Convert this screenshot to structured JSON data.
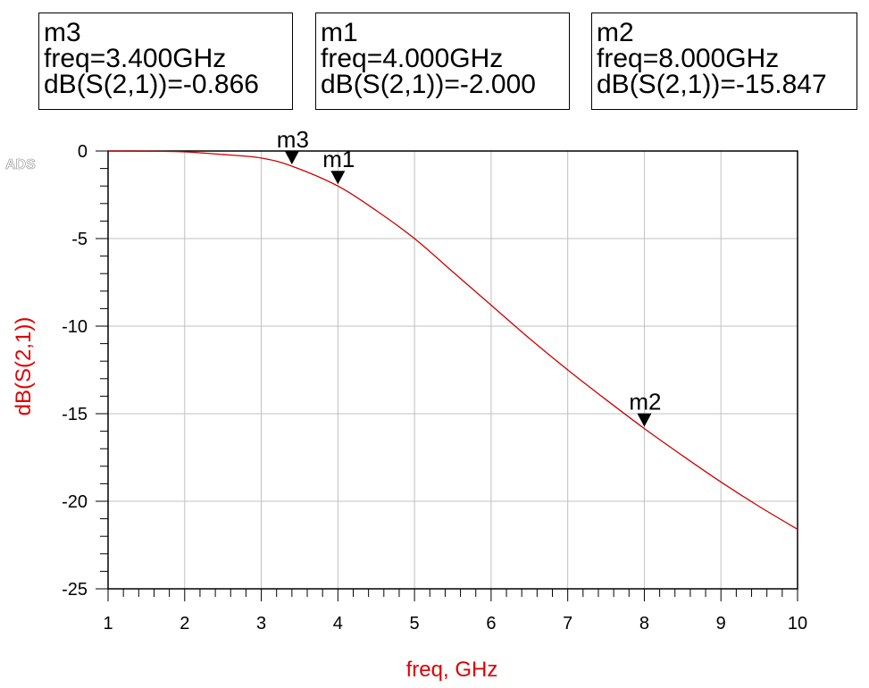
{
  "app": {
    "logo": "ADS"
  },
  "markers": [
    {
      "name": "m3",
      "freq_label": "freq=3.400GHz",
      "value_label": "dB(S(2,1))=-0.866",
      "x": 3.4,
      "y": -0.866
    },
    {
      "name": "m1",
      "freq_label": "freq=4.000GHz",
      "value_label": "dB(S(2,1))=-2.000",
      "x": 4.0,
      "y": -2.0
    },
    {
      "name": "m2",
      "freq_label": "freq=8.000GHz",
      "value_label": "dB(S(2,1))=-15.847",
      "x": 8.0,
      "y": -15.847
    }
  ],
  "colors": {
    "trace": "#cc0000",
    "axis_label": "#e00000",
    "grid": "#c0c0c0",
    "frame": "#000000"
  },
  "chart_data": {
    "type": "line",
    "title": "",
    "xlabel": "freq, GHz",
    "ylabel": "dB(S(2,1))",
    "xlim": [
      1,
      10
    ],
    "ylim": [
      -25,
      0
    ],
    "xticks": [
      "1",
      "2",
      "3",
      "4",
      "5",
      "6",
      "7",
      "8",
      "9",
      "10"
    ],
    "yticks": [
      "0",
      "-5",
      "-10",
      "-15",
      "-20",
      "-25"
    ],
    "grid": true,
    "series": [
      {
        "name": "dB(S(2,1))",
        "x": [
          1.0,
          1.5,
          2.0,
          2.5,
          3.0,
          3.4,
          4.0,
          4.5,
          5.0,
          5.5,
          6.0,
          6.5,
          7.0,
          7.5,
          8.0,
          8.5,
          9.0,
          9.5,
          10.0
        ],
        "y": [
          0.0,
          -0.01,
          -0.05,
          -0.2,
          -0.4,
          -0.866,
          -2.0,
          -3.4,
          -5.0,
          -6.9,
          -8.8,
          -10.7,
          -12.5,
          -14.2,
          -15.847,
          -17.4,
          -18.9,
          -20.3,
          -21.6
        ]
      }
    ]
  }
}
